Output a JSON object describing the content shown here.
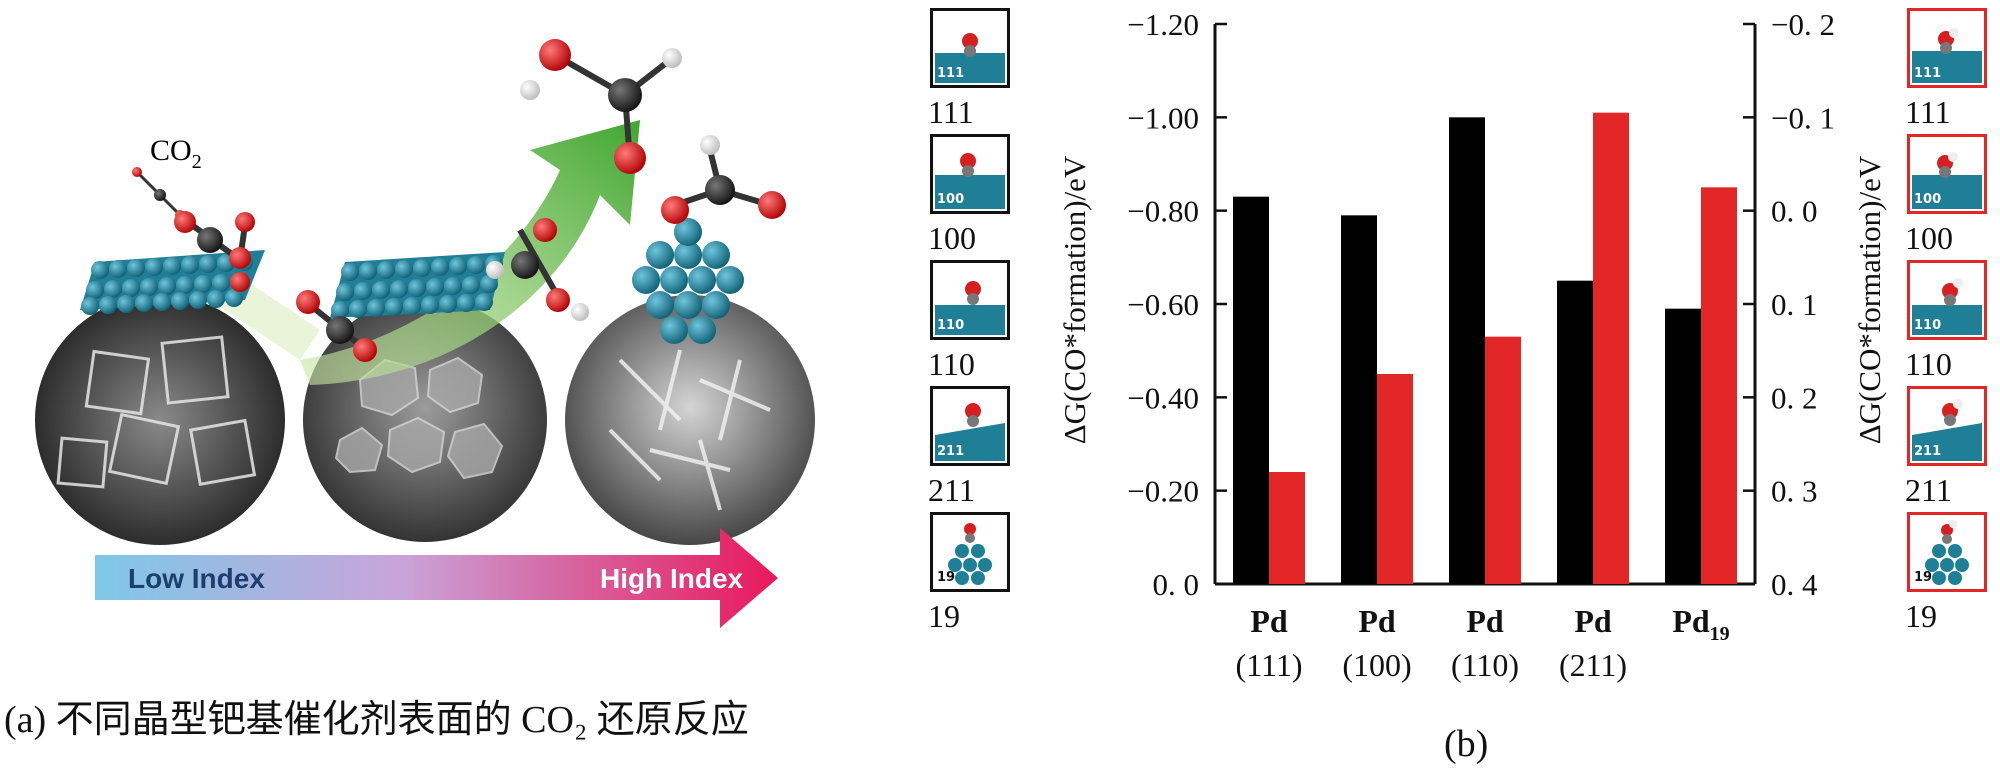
{
  "panel_a": {
    "co2_label": "CO",
    "co2_subscript": "2",
    "arrow_low_label": "Low Index",
    "arrow_high_label": "High Index",
    "caption": "(a) 不同晶型钯基催化剂表面的 CO₂ 还原反应"
  },
  "thumbnails_left": {
    "labels": [
      "111",
      "100",
      "110",
      "211",
      "19"
    ]
  },
  "thumbnails_right": {
    "labels": [
      "111",
      "100",
      "110",
      "211",
      "19"
    ]
  },
  "colors": {
    "black_bar": "#000000",
    "red_bar": "#e32626",
    "pd_atom": "#1f7f97",
    "green_arrow": "#3fa62f"
  },
  "chart_data": {
    "type": "bar",
    "title": "",
    "categories": [
      {
        "top": "Pd",
        "bottom": "(111)"
      },
      {
        "top": "Pd",
        "bottom": "(100)"
      },
      {
        "top": "Pd",
        "bottom": "(110)"
      },
      {
        "top": "Pd",
        "bottom": "(211)"
      },
      {
        "top": "Pd19",
        "bottom": ""
      }
    ],
    "series": [
      {
        "axis": "left",
        "color": "#000000",
        "values": [
          -0.83,
          -0.79,
          -1.0,
          -0.65,
          -0.59
        ]
      },
      {
        "axis": "right",
        "color": "#e32626",
        "values": [
          0.28,
          0.175,
          0.135,
          -0.105,
          -0.025
        ]
      }
    ],
    "left_axis": {
      "label": "ΔG(CO*formation)/eV",
      "range": [
        0.0,
        -1.2
      ],
      "ticks": [
        "0. 0",
        "−0.20",
        "−0.40",
        "−0.60",
        "−0.80",
        "−1.00",
        "−1.20"
      ]
    },
    "right_axis": {
      "label": "ΔG(CO*formation)/eV",
      "range": [
        0.4,
        -0.2
      ],
      "ticks": [
        "0. 4",
        "0. 3",
        "0. 2",
        "0. 1",
        "0. 0",
        "−0. 1",
        "−0. 2"
      ]
    },
    "grid": false,
    "legend": "none",
    "caption": "(b)"
  }
}
